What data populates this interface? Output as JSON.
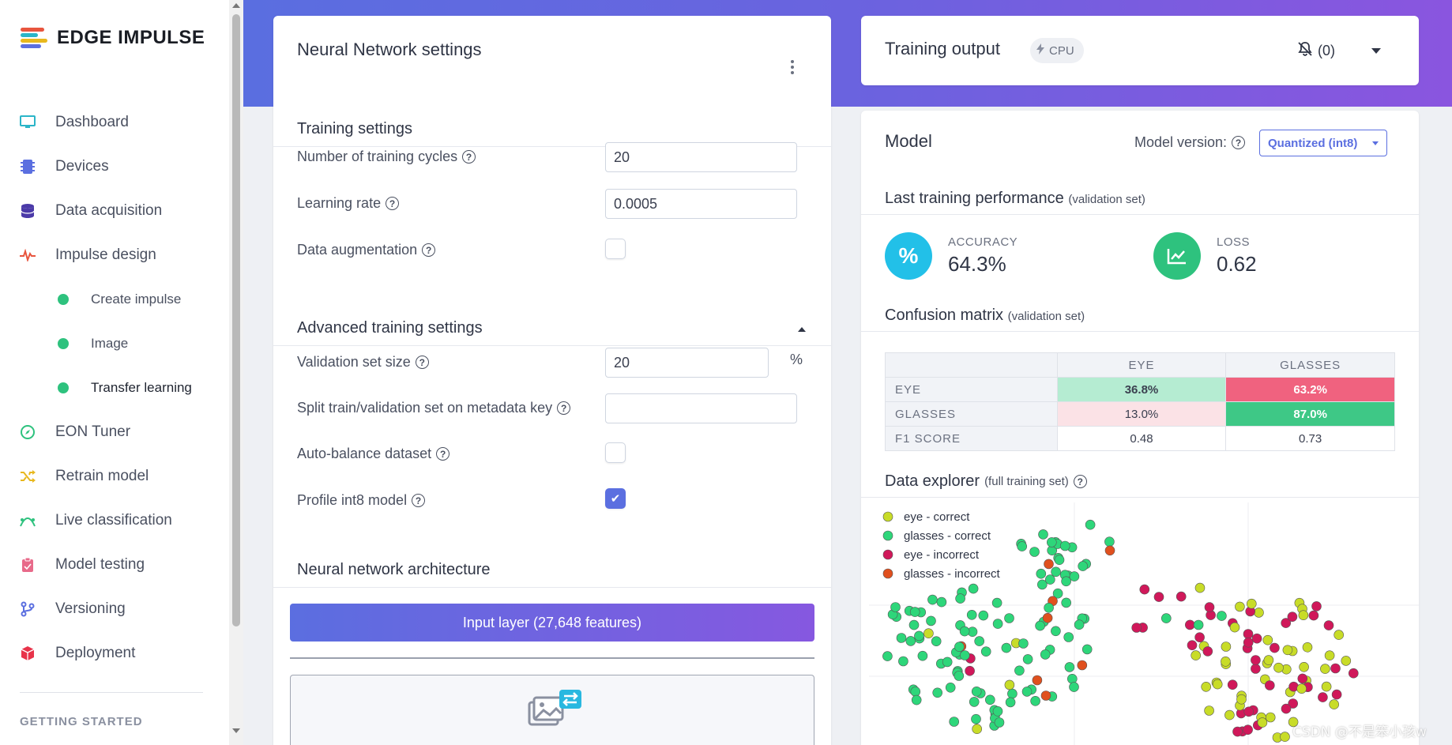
{
  "brand": {
    "name": "EDGE IMPULSE"
  },
  "sidebar": {
    "items": [
      {
        "label": "Dashboard",
        "icon": "monitor-icon",
        "color": "#2bb5c8"
      },
      {
        "label": "Devices",
        "icon": "chip-icon",
        "color": "#5b6fe0"
      },
      {
        "label": "Data acquisition",
        "icon": "database-icon",
        "color": "#4b3aa8"
      },
      {
        "label": "Impulse design",
        "icon": "pulse-icon",
        "color": "#e8553e"
      }
    ],
    "sub_items": [
      {
        "label": "Create impulse"
      },
      {
        "label": "Image"
      },
      {
        "label": "Transfer learning"
      }
    ],
    "items2": [
      {
        "label": "EON Tuner",
        "icon": "compass-icon",
        "color": "#2ec27e"
      },
      {
        "label": "Retrain model",
        "icon": "shuffle-icon",
        "color": "#e8b81e"
      },
      {
        "label": "Live classification",
        "icon": "classification-icon",
        "color": "#2ec27e"
      },
      {
        "label": "Model testing",
        "icon": "clipboard-icon",
        "color": "#e86a8a"
      },
      {
        "label": "Versioning",
        "icon": "branch-icon",
        "color": "#5b6fe0"
      },
      {
        "label": "Deployment",
        "icon": "package-icon",
        "color": "#e8334a"
      }
    ],
    "getting_started": "GETTING STARTED"
  },
  "nn": {
    "title": "Neural Network settings",
    "training_settings": "Training settings",
    "cycles_label": "Number of training cycles",
    "cycles_value": "20",
    "lr_label": "Learning rate",
    "lr_value": "0.0005",
    "aug_label": "Data augmentation",
    "advanced": "Advanced training settings",
    "val_label": "Validation set size",
    "val_value": "20",
    "val_unit": "%",
    "split_label": "Split train/validation set on metadata key",
    "split_value": "",
    "balance_label": "Auto-balance dataset",
    "profile_label": "Profile int8 model",
    "arch_title": "Neural network architecture",
    "input_layer": "Input layer (27,648 features)"
  },
  "training_output": {
    "title": "Training output",
    "badge": "CPU",
    "notifications": "(0)"
  },
  "model": {
    "title": "Model",
    "version_label": "Model version:",
    "version_value": "Quantized (int8)",
    "perf_title": "Last training performance",
    "perf_note": "(validation set)",
    "accuracy_label": "ACCURACY",
    "accuracy_value": "64.3%",
    "loss_label": "LOSS",
    "loss_value": "0.62",
    "cm_title": "Confusion matrix",
    "cm_note": "(validation set)",
    "cm_columns": [
      "EYE",
      "GLASSES"
    ],
    "cm_rows": [
      {
        "label": "EYE",
        "values": [
          "36.8%",
          "63.2%"
        ]
      },
      {
        "label": "GLASSES",
        "values": [
          "13.0%",
          "87.0%"
        ]
      },
      {
        "label": "F1 SCORE",
        "values": [
          "0.48",
          "0.73"
        ]
      }
    ],
    "explorer_title": "Data explorer",
    "explorer_note": "(full training set)",
    "legend": [
      {
        "label": "eye - correct",
        "color": "#c8dc28"
      },
      {
        "label": "glasses - correct",
        "color": "#2ed67a"
      },
      {
        "label": "eye - incorrect",
        "color": "#d0185a"
      },
      {
        "label": "glasses - incorrect",
        "color": "#e0501e"
      }
    ]
  },
  "watermark": "CSDN @不是笨小孩w"
}
